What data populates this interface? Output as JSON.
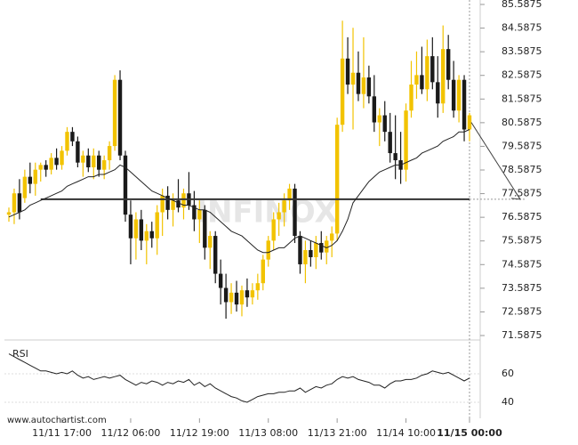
{
  "chart_data": {
    "type": "candlestick",
    "source": "www.autochartist.com",
    "watermark": "INFINOX",
    "colors": {
      "up": "#f2c300",
      "down": "#1a1a1a",
      "ma": "#222222",
      "level": "#333333",
      "rsi": "#222222"
    },
    "categories": [
      null,
      null,
      null,
      null,
      null,
      null,
      null,
      null,
      null,
      null,
      "11/11 17:00",
      null,
      null,
      null,
      null,
      null,
      null,
      null,
      null,
      null,
      null,
      null,
      null,
      "11/12 06:00",
      null,
      null,
      null,
      null,
      null,
      null,
      null,
      null,
      null,
      null,
      null,
      null,
      "11/12 19:00",
      null,
      null,
      null,
      null,
      null,
      null,
      null,
      null,
      null,
      null,
      null,
      null,
      "11/13 08:00",
      null,
      null,
      null,
      null,
      null,
      null,
      null,
      null,
      null,
      null,
      null,
      null,
      "11/13 21:00",
      null,
      null,
      null,
      null,
      null,
      null,
      null,
      null,
      null,
      null,
      null,
      null,
      "11/14 10:00",
      null,
      null,
      null,
      null,
      null,
      null,
      null,
      null,
      null,
      null,
      null,
      "11/15 00:00"
    ],
    "ohlc": [
      [
        76.7,
        77.0,
        76.4,
        76.8
      ],
      [
        76.8,
        77.8,
        76.3,
        77.6
      ],
      [
        77.6,
        78.2,
        76.5,
        76.8
      ],
      [
        77.4,
        78.6,
        77.2,
        78.3
      ],
      [
        78.3,
        78.9,
        77.6,
        78.0
      ],
      [
        78.0,
        78.9,
        77.5,
        78.6
      ],
      [
        78.6,
        78.9,
        78.1,
        78.8
      ],
      [
        78.8,
        79.0,
        78.3,
        78.6
      ],
      [
        78.6,
        79.3,
        78.4,
        79.1
      ],
      [
        79.1,
        79.5,
        78.6,
        78.8
      ],
      [
        78.8,
        79.6,
        78.6,
        79.4
      ],
      [
        79.4,
        80.4,
        79.2,
        80.2
      ],
      [
        80.2,
        80.4,
        79.6,
        79.8
      ],
      [
        79.8,
        80.0,
        78.7,
        78.9
      ],
      [
        78.9,
        79.4,
        78.3,
        79.2
      ],
      [
        79.2,
        79.5,
        78.5,
        78.7
      ],
      [
        78.7,
        79.5,
        78.2,
        79.2
      ],
      [
        79.2,
        79.4,
        78.3,
        78.6
      ],
      [
        78.6,
        79.2,
        78.2,
        79.0
      ],
      [
        79.0,
        79.8,
        78.6,
        79.6
      ],
      [
        79.6,
        82.6,
        79.4,
        82.4
      ],
      [
        82.4,
        82.8,
        79.0,
        79.2
      ],
      [
        79.2,
        79.4,
        76.4,
        76.7
      ],
      [
        76.7,
        77.3,
        74.6,
        75.7
      ],
      [
        75.7,
        76.8,
        74.8,
        76.5
      ],
      [
        76.5,
        76.9,
        75.2,
        75.6
      ],
      [
        75.6,
        76.3,
        74.6,
        76.0
      ],
      [
        76.0,
        76.4,
        75.3,
        75.7
      ],
      [
        75.7,
        77.1,
        75.0,
        76.8
      ],
      [
        76.8,
        77.8,
        75.8,
        77.5
      ],
      [
        77.5,
        77.9,
        76.5,
        76.9
      ],
      [
        76.9,
        77.6,
        76.2,
        77.3
      ],
      [
        77.3,
        78.2,
        76.8,
        77.0
      ],
      [
        77.0,
        77.8,
        76.5,
        77.6
      ],
      [
        77.6,
        78.5,
        76.9,
        77.1
      ],
      [
        77.1,
        77.7,
        76.0,
        76.5
      ],
      [
        76.5,
        77.3,
        75.5,
        76.9
      ],
      [
        76.9,
        77.1,
        74.8,
        75.3
      ],
      [
        75.3,
        76.0,
        74.4,
        75.8
      ],
      [
        75.8,
        76.0,
        73.8,
        74.2
      ],
      [
        74.2,
        74.8,
        72.9,
        73.6
      ],
      [
        73.6,
        74.2,
        72.3,
        73.0
      ],
      [
        73.0,
        73.8,
        72.5,
        73.4
      ],
      [
        73.4,
        73.9,
        72.6,
        72.9
      ],
      [
        72.9,
        73.7,
        72.4,
        73.5
      ],
      [
        73.5,
        74.0,
        72.8,
        73.2
      ],
      [
        73.2,
        73.8,
        72.9,
        73.5
      ],
      [
        73.5,
        74.2,
        73.1,
        73.8
      ],
      [
        73.8,
        75.0,
        73.5,
        74.8
      ],
      [
        74.8,
        75.8,
        74.5,
        75.6
      ],
      [
        75.6,
        76.8,
        75.2,
        76.5
      ],
      [
        76.5,
        77.2,
        75.8,
        76.8
      ],
      [
        76.8,
        77.6,
        76.2,
        77.3
      ],
      [
        77.3,
        78.0,
        76.9,
        77.8
      ],
      [
        77.8,
        78.0,
        75.5,
        75.8
      ],
      [
        75.8,
        76.0,
        74.2,
        74.6
      ],
      [
        74.6,
        75.6,
        73.8,
        75.2
      ],
      [
        75.2,
        75.6,
        74.5,
        74.9
      ],
      [
        74.9,
        75.8,
        74.4,
        75.5
      ],
      [
        75.5,
        76.0,
        74.8,
        75.1
      ],
      [
        75.1,
        75.8,
        74.6,
        75.6
      ],
      [
        75.6,
        76.2,
        74.9,
        75.9
      ],
      [
        75.9,
        80.8,
        75.6,
        80.5
      ],
      [
        80.5,
        84.9,
        80.2,
        83.3
      ],
      [
        83.3,
        84.2,
        81.8,
        82.2
      ],
      [
        82.2,
        84.6,
        80.3,
        82.7
      ],
      [
        82.7,
        83.6,
        81.5,
        81.8
      ],
      [
        81.8,
        84.2,
        81.2,
        82.5
      ],
      [
        82.5,
        83.0,
        81.4,
        81.7
      ],
      [
        81.7,
        82.6,
        80.2,
        80.6
      ],
      [
        80.6,
        81.2,
        79.6,
        80.9
      ],
      [
        80.9,
        81.5,
        79.8,
        80.2
      ],
      [
        80.2,
        81.0,
        78.9,
        79.3
      ],
      [
        79.3,
        80.9,
        78.2,
        79.0
      ],
      [
        79.0,
        80.2,
        78.0,
        78.6
      ],
      [
        78.6,
        81.4,
        78.1,
        81.1
      ],
      [
        81.1,
        83.2,
        80.8,
        82.2
      ],
      [
        82.2,
        83.6,
        81.6,
        82.6
      ],
      [
        82.6,
        83.8,
        81.8,
        82.0
      ],
      [
        82.0,
        84.1,
        81.5,
        83.4
      ],
      [
        83.4,
        84.2,
        82.0,
        82.3
      ],
      [
        82.3,
        83.4,
        80.8,
        81.4
      ],
      [
        81.4,
        84.7,
        81.0,
        83.7
      ],
      [
        83.7,
        84.3,
        82.0,
        82.4
      ],
      [
        82.4,
        83.2,
        80.8,
        81.1
      ],
      [
        81.1,
        82.6,
        80.6,
        82.4
      ],
      [
        82.4,
        82.6,
        79.8,
        80.3
      ],
      [
        80.3,
        81.0,
        79.8,
        80.9
      ]
    ],
    "ma": [
      76.6,
      76.7,
      76.8,
      76.9,
      77.1,
      77.2,
      77.3,
      77.4,
      77.5,
      77.6,
      77.7,
      77.9,
      78.0,
      78.1,
      78.2,
      78.3,
      78.3,
      78.4,
      78.4,
      78.5,
      78.6,
      78.8,
      78.7,
      78.5,
      78.3,
      78.1,
      77.9,
      77.7,
      77.6,
      77.5,
      77.4,
      77.3,
      77.2,
      77.1,
      77.1,
      77.0,
      76.9,
      76.9,
      76.8,
      76.6,
      76.4,
      76.2,
      76.0,
      75.9,
      75.8,
      75.6,
      75.4,
      75.2,
      75.1,
      75.1,
      75.2,
      75.3,
      75.3,
      75.5,
      75.7,
      75.8,
      75.7,
      75.6,
      75.5,
      75.4,
      75.3,
      75.4,
      75.6,
      76.0,
      76.5,
      77.2,
      77.5,
      77.8,
      78.1,
      78.3,
      78.5,
      78.6,
      78.7,
      78.8,
      78.8,
      78.9,
      79.0,
      79.1,
      79.3,
      79.4,
      79.5,
      79.6,
      79.8,
      79.9,
      80.0,
      80.2,
      80.2,
      80.3
    ],
    "level": 77.35,
    "ylim": [
      71.1,
      85.7
    ],
    "yticks": [
      85.5875,
      84.5875,
      83.5875,
      82.5875,
      81.5875,
      80.5875,
      79.5875,
      78.5875,
      77.5875,
      76.5875,
      75.5875,
      74.5875,
      73.5875,
      72.5875,
      71.5875
    ],
    "rsi": {
      "label": "RSI",
      "ylim": [
        32,
        82
      ],
      "yticks": [
        60,
        40
      ],
      "values": [
        74,
        72,
        70,
        68,
        66,
        64,
        62,
        62,
        61,
        60,
        61,
        60,
        62,
        59,
        57,
        58,
        56,
        57,
        58,
        57,
        58,
        59,
        56,
        54,
        52,
        54,
        53,
        55,
        54,
        52,
        54,
        53,
        55,
        54,
        56,
        52,
        54,
        51,
        53,
        50,
        48,
        46,
        44,
        43,
        41,
        40,
        42,
        44,
        45,
        46,
        46,
        47,
        47,
        48,
        48,
        50,
        47,
        49,
        51,
        50,
        52,
        53,
        56,
        58,
        57,
        58,
        56,
        55,
        54,
        52,
        52,
        50,
        53,
        55,
        55,
        56,
        56,
        57,
        59,
        60,
        62,
        61,
        60,
        61,
        59,
        57,
        55,
        57
      ]
    }
  }
}
